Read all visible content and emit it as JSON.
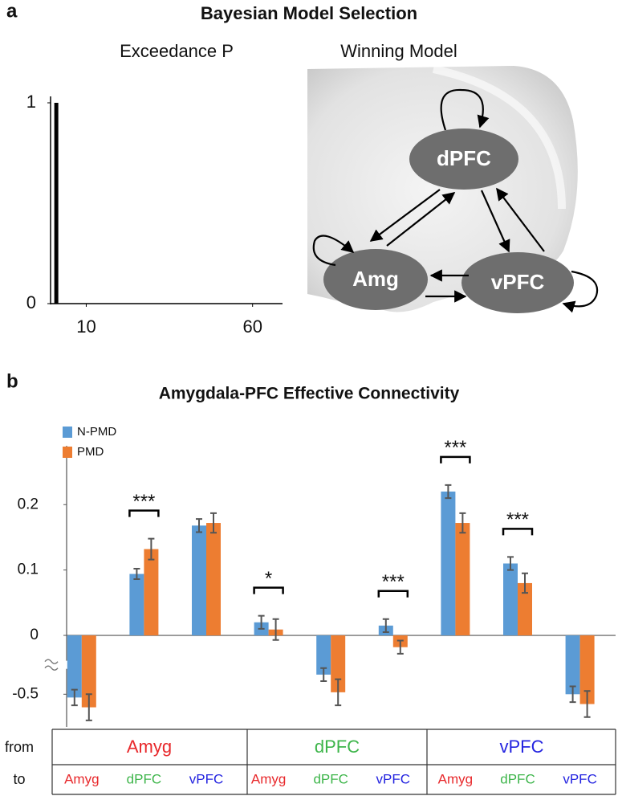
{
  "panels": [
    {
      "label": "a",
      "title": "Bayesian Model Selection"
    },
    {
      "label": "b"
    }
  ],
  "chart_data": [
    {
      "type": "bar",
      "title": "Exceedance P",
      "x": [
        1
      ],
      "values": [
        1
      ],
      "color": "#000000",
      "xlim": [
        0,
        69
      ],
      "xticks": [
        10,
        60
      ],
      "ylim": [
        0,
        1
      ],
      "yticks": [
        0,
        1
      ]
    },
    {
      "type": "bar",
      "title": "Amygdala-PFC Effective Connectivity",
      "row_labels": [
        "from",
        "to"
      ],
      "groups": [
        {
          "name": "Amyg",
          "color": "#e8282b"
        },
        {
          "name": "dPFC",
          "color": "#3db54a"
        },
        {
          "name": "vPFC",
          "color": "#2424e0"
        }
      ],
      "categories": [
        "Amyg",
        "dPFC",
        "vPFC",
        "Amyg",
        "dPFC",
        "vPFC",
        "Amyg",
        "dPFC",
        "vPFC"
      ],
      "category_colors": [
        "#e8282b",
        "#3db54a",
        "#2424e0",
        "#e8282b",
        "#3db54a",
        "#2424e0",
        "#e8282b",
        "#3db54a",
        "#2424e0"
      ],
      "series": [
        {
          "name": "N-PMD",
          "color": "#5b9bd5",
          "values": [
            -0.505,
            0.094,
            0.168,
            0.02,
            -0.47,
            0.015,
            0.22,
            0.11,
            -0.5
          ],
          "errors": [
            0.012,
            0.008,
            0.01,
            0.01,
            0.01,
            0.01,
            0.01,
            0.01,
            0.012
          ]
        },
        {
          "name": "PMD",
          "color": "#ed7d31",
          "values": [
            -0.52,
            0.132,
            0.172,
            0.009,
            -0.497,
            -0.018,
            0.172,
            0.08,
            -0.515
          ],
          "errors": [
            0.02,
            0.016,
            0.015,
            0.016,
            0.02,
            0.01,
            0.015,
            0.015,
            0.02
          ]
        }
      ],
      "significance": [
        null,
        "***",
        null,
        "*",
        null,
        "***",
        "***",
        "***",
        null
      ],
      "ylim": [
        -0.55,
        0.29
      ],
      "axis_break": [
        -0.045,
        -0.455
      ],
      "yticks": [
        0.2,
        0.1,
        0,
        -0.5
      ]
    }
  ],
  "diagram": {
    "title": "Winning Model",
    "nodes": [
      {
        "label": "dPFC"
      },
      {
        "label": "Amg"
      },
      {
        "label": "vPFC"
      }
    ]
  }
}
